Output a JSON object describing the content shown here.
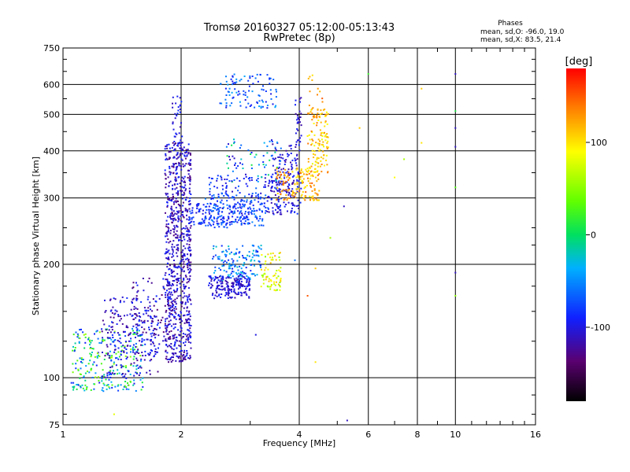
{
  "title": "Tromsø 20160327 05:12:00-05:13:43",
  "subtitle": "RwPretec (8p)",
  "stats": {
    "header": "Phases",
    "line_o": "mean, sd,O: -96.0, 19.0",
    "line_x": "mean, sd,X:  83.5, 21.4"
  },
  "colorbar": {
    "label": "[deg]",
    "range": [
      -180,
      180
    ],
    "ticks": [
      {
        "value": 100,
        "label": "100"
      },
      {
        "value": 0,
        "label": "0"
      },
      {
        "value": -100,
        "label": "-100"
      }
    ]
  },
  "chart_data": {
    "type": "scatter",
    "title": "Tromsø 20160327 05:12:00-05:13:43",
    "subtitle": "RwPretec (8p)",
    "xlabel": "Frequency [MHz]",
    "ylabel": "Stationary phase Virtual Height [km]",
    "xscale": "log",
    "yscale": "log",
    "xlim": [
      1,
      16
    ],
    "ylim": [
      75,
      750
    ],
    "grid": true,
    "x_ticks": [
      1,
      2,
      4,
      6,
      8,
      10,
      16
    ],
    "x_tick_labels": [
      "1",
      "2",
      "4",
      "6",
      "8",
      "10",
      "16"
    ],
    "y_ticks": [
      75,
      100,
      200,
      300,
      400,
      500,
      600,
      750
    ],
    "y_tick_labels": [
      "75",
      "100",
      "200",
      "300",
      "400",
      "500",
      "600",
      "750"
    ],
    "color_by": "phase (deg)",
    "clusters": [
      {
        "mode": "O",
        "xr": [
          1.05,
          1.6
        ],
        "yr": [
          92,
          135
        ],
        "phase": [
          -100,
          60
        ],
        "n": 260
      },
      {
        "mode": "O",
        "xr": [
          1.25,
          1.75
        ],
        "yr": [
          100,
          165
        ],
        "phase": [
          -130,
          -80
        ],
        "n": 220
      },
      {
        "mode": "O",
        "xr": [
          1.5,
          1.9
        ],
        "yr": [
          115,
          185
        ],
        "phase": [
          -140,
          -80
        ],
        "n": 120
      },
      {
        "mode": "O",
        "xr": [
          1.82,
          2.12
        ],
        "yr": [
          110,
          420
        ],
        "phase": [
          -135,
          -85
        ],
        "n": 800
      },
      {
        "mode": "O",
        "xr": [
          1.9,
          2.02
        ],
        "yr": [
          400,
          560
        ],
        "phase": [
          -120,
          -80
        ],
        "n": 40
      },
      {
        "mode": "O",
        "xr": [
          2.1,
          3.0
        ],
        "yr": [
          255,
          290
        ],
        "phase": [
          -110,
          -70
        ],
        "n": 140
      },
      {
        "mode": "O",
        "xr": [
          2.3,
          3.3
        ],
        "yr": [
          250,
          310
        ],
        "phase": [
          -90,
          -50
        ],
        "n": 140
      },
      {
        "mode": "O",
        "xr": [
          2.35,
          3.6
        ],
        "yr": [
          272,
          345
        ],
        "phase": [
          -110,
          -60
        ],
        "n": 110
      },
      {
        "mode": "O",
        "xr": [
          3.3,
          4.05
        ],
        "yr": [
          270,
          330
        ],
        "phase": [
          -120,
          -80
        ],
        "n": 80
      },
      {
        "mode": "O",
        "xr": [
          3.4,
          4.05
        ],
        "yr": [
          310,
          420
        ],
        "phase": [
          -125,
          -85
        ],
        "n": 120
      },
      {
        "mode": "O",
        "xr": [
          3.9,
          4.05
        ],
        "yr": [
          420,
          560
        ],
        "phase": [
          -120,
          -90
        ],
        "n": 30
      },
      {
        "mode": "O",
        "xr": [
          2.4,
          3.2
        ],
        "yr": [
          180,
          225
        ],
        "phase": [
          -100,
          -20
        ],
        "n": 160
      },
      {
        "mode": "O",
        "xr": [
          2.35,
          3.0
        ],
        "yr": [
          172,
          186
        ],
        "phase": [
          -120,
          -90
        ],
        "n": 120
      },
      {
        "mode": "O",
        "xr": [
          2.4,
          3.0
        ],
        "yr": [
          162,
          172
        ],
        "phase": [
          -120,
          -90
        ],
        "n": 60
      },
      {
        "mode": "O",
        "xr": [
          2.5,
          3.5
        ],
        "yr": [
          520,
          640
        ],
        "phase": [
          -100,
          -40
        ],
        "n": 100
      },
      {
        "mode": "O",
        "xr": [
          2.6,
          3.6
        ],
        "yr": [
          330,
          430
        ],
        "phase": [
          -110,
          10
        ],
        "n": 70
      },
      {
        "mode": "X",
        "xr": [
          3.2,
          3.6
        ],
        "yr": [
          170,
          215
        ],
        "phase": [
          40,
          120
        ],
        "n": 70
      },
      {
        "mode": "X",
        "xr": [
          3.5,
          4.5
        ],
        "yr": [
          295,
          360
        ],
        "phase": [
          90,
          150
        ],
        "n": 140
      },
      {
        "mode": "X",
        "xr": [
          4.2,
          4.75
        ],
        "yr": [
          350,
          520
        ],
        "phase": [
          80,
          140
        ],
        "n": 120
      },
      {
        "mode": "X",
        "xr": [
          4.2,
          4.6
        ],
        "yr": [
          480,
          650
        ],
        "phase": [
          100,
          150
        ],
        "n": 20
      }
    ],
    "sparse_points": [
      {
        "x": 5.7,
        "y": 460,
        "phase": 110
      },
      {
        "x": 6.0,
        "y": 640,
        "phase": 20
      },
      {
        "x": 7.0,
        "y": 340,
        "phase": 90
      },
      {
        "x": 7.4,
        "y": 380,
        "phase": 60
      },
      {
        "x": 8.2,
        "y": 420,
        "phase": 100
      },
      {
        "x": 8.2,
        "y": 585,
        "phase": 110
      },
      {
        "x": 10.0,
        "y": 640,
        "phase": -110
      },
      {
        "x": 10.0,
        "y": 510,
        "phase": 10
      },
      {
        "x": 10.0,
        "y": 460,
        "phase": -110
      },
      {
        "x": 10.0,
        "y": 410,
        "phase": -110
      },
      {
        "x": 10.0,
        "y": 320,
        "phase": 30
      },
      {
        "x": 10.0,
        "y": 190,
        "phase": -110
      },
      {
        "x": 10.0,
        "y": 165,
        "phase": 50
      },
      {
        "x": 4.4,
        "y": 195,
        "phase": 110
      },
      {
        "x": 4.4,
        "y": 110,
        "phase": 100
      },
      {
        "x": 4.2,
        "y": 165,
        "phase": 150
      },
      {
        "x": 5.2,
        "y": 285,
        "phase": -110
      },
      {
        "x": 5.3,
        "y": 77,
        "phase": -110
      },
      {
        "x": 4.8,
        "y": 235,
        "phase": 60
      },
      {
        "x": 3.9,
        "y": 205,
        "phase": -60
      },
      {
        "x": 3.1,
        "y": 130,
        "phase": -100
      },
      {
        "x": 1.35,
        "y": 80,
        "phase": 80
      },
      {
        "x": 1.15,
        "y": 94,
        "phase": 40
      }
    ]
  }
}
